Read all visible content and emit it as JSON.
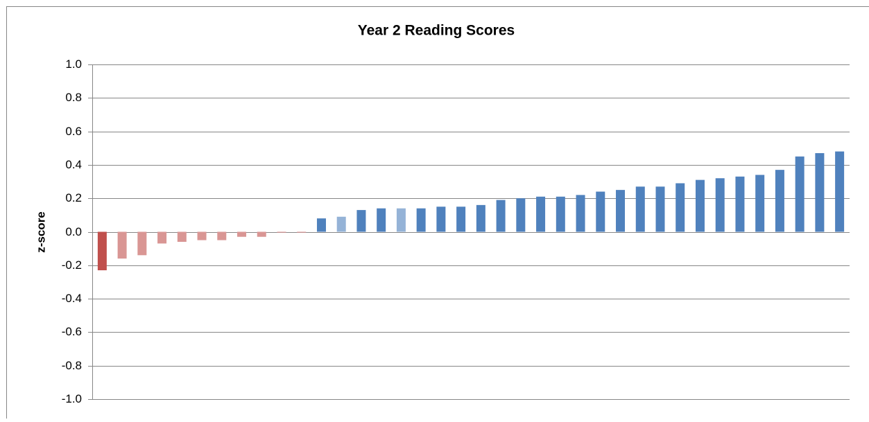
{
  "chart_data": {
    "type": "bar",
    "title": "Year 2 Reading Scores",
    "y_label": "z-score",
    "categories": [
      null,
      null,
      null,
      null,
      null,
      null,
      null,
      null,
      null,
      null,
      null,
      null,
      null,
      null,
      null,
      null,
      null,
      null,
      null,
      null,
      null,
      null,
      null,
      null,
      null,
      null,
      null,
      null,
      null,
      null,
      null,
      null,
      null,
      null,
      null,
      null,
      null,
      null
    ],
    "values": [
      -0.23,
      -0.16,
      -0.14,
      -0.07,
      -0.06,
      -0.05,
      -0.05,
      -0.03,
      -0.03,
      -0.005,
      -0.005,
      0.08,
      0.09,
      0.13,
      0.14,
      0.14,
      0.14,
      0.15,
      0.15,
      0.16,
      0.19,
      0.2,
      0.21,
      0.21,
      0.22,
      0.24,
      0.25,
      0.27,
      0.27,
      0.29,
      0.31,
      0.32,
      0.33,
      0.34,
      0.37,
      0.45,
      0.47,
      0.48
    ],
    "colors": [
      "#c0504d",
      "#d99694",
      "#d99694",
      "#d99694",
      "#d99694",
      "#d99694",
      "#d99694",
      "#d99694",
      "#d99694",
      "#d99694",
      "#d99694",
      "#4f81bd",
      "#95b3d7",
      "#4f81bd",
      "#4f81bd",
      "#95b3d7",
      "#4f81bd",
      "#4f81bd",
      "#4f81bd",
      "#4f81bd",
      "#4f81bd",
      "#4f81bd",
      "#4f81bd",
      "#4f81bd",
      "#4f81bd",
      "#4f81bd",
      "#4f81bd",
      "#4f81bd",
      "#4f81bd",
      "#4f81bd",
      "#4f81bd",
      "#4f81bd",
      "#4f81bd",
      "#4f81bd",
      "#4f81bd",
      "#4f81bd",
      "#4f81bd",
      "#4f81bd"
    ],
    "ylim": [
      -1,
      1
    ],
    "yticks": [
      {
        "value": 1,
        "label": "1.0"
      },
      {
        "value": 0.8,
        "label": "0.8"
      },
      {
        "value": 0.6,
        "label": "0.6"
      },
      {
        "value": 0.4,
        "label": "0.4"
      },
      {
        "value": 0.2,
        "label": "0.2"
      },
      {
        "value": 0,
        "label": "0.0"
      },
      {
        "value": -0.2,
        "label": "-0.2"
      },
      {
        "value": -0.4,
        "label": "-0.4"
      },
      {
        "value": -0.6,
        "label": "-0.6"
      },
      {
        "value": -0.8,
        "label": "-0.8"
      },
      {
        "value": -1,
        "label": "-1.0"
      }
    ],
    "grid": true
  }
}
